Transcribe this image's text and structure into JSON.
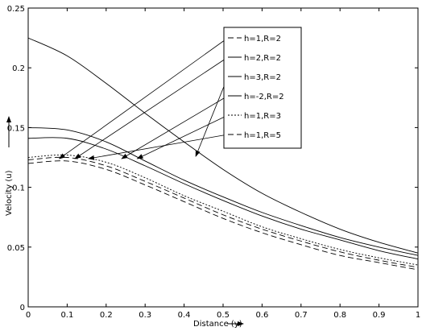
{
  "chart_data": {
    "type": "line",
    "title": "",
    "xlabel": "Distance (y)",
    "ylabel": "Velocity (u)",
    "xlim": [
      0,
      1
    ],
    "ylim": [
      0,
      0.25
    ],
    "xticks": [
      "0",
      "0.1",
      "0.2",
      "0.3",
      "0.4",
      "0.5",
      "0.6",
      "0.7",
      "0.8",
      "0.9",
      "1"
    ],
    "yticks": [
      "0",
      "0.05",
      "0.1",
      "0.15",
      "0.2",
      "0.25"
    ],
    "grid": false,
    "legend_position": "top-right",
    "x": [
      0,
      0.1,
      0.2,
      0.3,
      0.4,
      0.5,
      0.6,
      0.7,
      0.8,
      0.9,
      1.0
    ],
    "series": [
      {
        "name": "h=1,R=2",
        "style": "dashed",
        "values": [
          0.12,
          0.122,
          0.115,
          0.102,
          0.088,
          0.074,
          0.062,
          0.052,
          0.043,
          0.037,
          0.031
        ]
      },
      {
        "name": "h=2,R=2",
        "style": "solid",
        "values": [
          0.15,
          0.148,
          0.138,
          0.122,
          0.106,
          0.092,
          0.079,
          0.068,
          0.058,
          0.05,
          0.043
        ]
      },
      {
        "name": "h=3,R=2",
        "style": "solid",
        "values": [
          0.225,
          0.21,
          0.187,
          0.162,
          0.138,
          0.115,
          0.095,
          0.079,
          0.065,
          0.054,
          0.045
        ]
      },
      {
        "name": "h=-2,R=2",
        "style": "solid",
        "values": [
          0.141,
          0.141,
          0.132,
          0.118,
          0.103,
          0.089,
          0.076,
          0.065,
          0.056,
          0.047,
          0.04
        ]
      },
      {
        "name": "h=1,R=3",
        "style": "dotted",
        "values": [
          0.125,
          0.127,
          0.121,
          0.108,
          0.093,
          0.08,
          0.067,
          0.057,
          0.048,
          0.041,
          0.035
        ]
      },
      {
        "name": "h=1,R=5",
        "style": "dashed",
        "values": [
          0.123,
          0.125,
          0.118,
          0.105,
          0.091,
          0.077,
          0.065,
          0.055,
          0.046,
          0.039,
          0.033
        ]
      }
    ],
    "annotations": [
      {
        "series": "h=1,R=2",
        "x": 0.08,
        "y": 0.124
      },
      {
        "series": "h=2,R=2",
        "x": 0.12,
        "y": 0.124
      },
      {
        "series": "h=3,R=2",
        "x": 0.43,
        "y": 0.126
      },
      {
        "series": "h=-2,R=2",
        "x": 0.24,
        "y": 0.124
      },
      {
        "series": "h=1,R=3",
        "x": 0.28,
        "y": 0.124
      },
      {
        "series": "h=1,R=5",
        "x": 0.155,
        "y": 0.124
      }
    ]
  }
}
